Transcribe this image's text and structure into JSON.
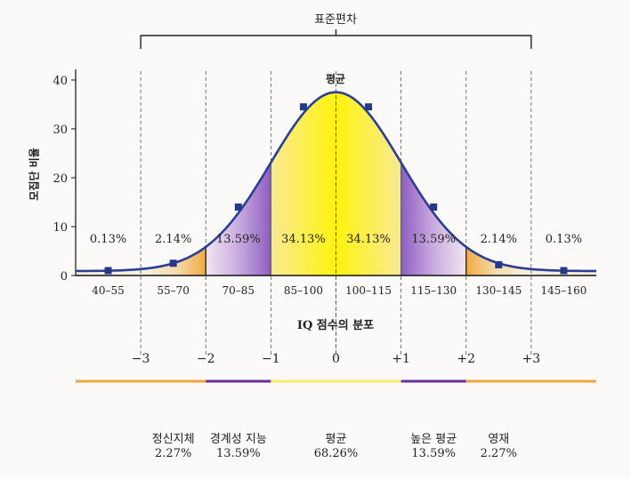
{
  "chart_data": {
    "type": "area",
    "title": "",
    "sd_label": "표준편차",
    "mean_label": "평균",
    "ylabel": "모집단 비율",
    "xlabel": "IQ 점수의 분포",
    "ylim": [
      0,
      40
    ],
    "y_ticks": [
      "0",
      "10",
      "20",
      "30",
      "40"
    ],
    "categories": [
      "40–55",
      "55–70",
      "70–85",
      "85–100",
      "100–115",
      "115–130",
      "130–145",
      "145–160"
    ],
    "band_percents": [
      "0.13%",
      "2.14%",
      "13.59%",
      "34.13%",
      "34.13%",
      "13.59%",
      "2.14%",
      "0.13%"
    ],
    "points": [
      {
        "x": 47.5,
        "y": 1
      },
      {
        "x": 62.5,
        "y": 2.5
      },
      {
        "x": 77.5,
        "y": 14
      },
      {
        "x": 92.5,
        "y": 34.5
      },
      {
        "x": 107.5,
        "y": 34.5
      },
      {
        "x": 122.5,
        "y": 14
      },
      {
        "x": 137.5,
        "y": 2.2
      },
      {
        "x": 152.5,
        "y": 1
      }
    ],
    "sd_ticks": [
      "−3",
      "−2",
      "−1",
      "0",
      "+1",
      "+2",
      "+3"
    ],
    "colors": {
      "curve": "#2a3f94",
      "marker": "#24398a",
      "center": "#fff200",
      "middle": "#8a55bf",
      "tail": "#f0a63a",
      "grid": "#555555"
    }
  },
  "summary": [
    {
      "label": "정신지체",
      "value": "2.27%"
    },
    {
      "label": "경계성 지능",
      "value": "13.59%"
    },
    {
      "label": "평균",
      "value": "68.26%"
    },
    {
      "label": "높은 평균",
      "value": "13.59%"
    },
    {
      "label": "영재",
      "value": "2.27%"
    }
  ]
}
